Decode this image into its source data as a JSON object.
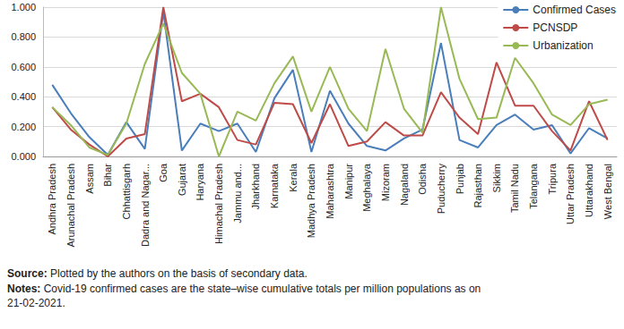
{
  "chart_data": {
    "type": "line",
    "categories": [
      "Andhra Pradesh",
      "Arunachal Pradesh",
      "Assam",
      "Bihar",
      "Chhattisgarh",
      "Dadra and Nagar...",
      "Goa",
      "Gujarat",
      "Haryana",
      "Himachal Pradesh",
      "Jammu and...",
      "Jharkhand",
      "Karnataka",
      "Kerala",
      "Madhya Pradesh",
      "Maharashtra",
      "Manipur",
      "Meghalaya",
      "Mizoram",
      "Nagaland",
      "Odisha",
      "Puducherry",
      "Punjab",
      "Rajasthan",
      "Sikkim",
      "Tamil Nadu",
      "Telangana",
      "Tripura",
      "Uttar Pradesh",
      "Uttarakhand",
      "West Bengal"
    ],
    "series": [
      {
        "name": "Confirmed Cases",
        "color": "#4a7ebb",
        "values": [
          0.48,
          0.29,
          0.13,
          0.01,
          0.23,
          0.05,
          0.97,
          0.04,
          0.22,
          0.17,
          0.22,
          0.03,
          0.39,
          0.58,
          0.03,
          0.44,
          0.22,
          0.07,
          0.04,
          0.12,
          0.18,
          0.76,
          0.11,
          0.06,
          0.21,
          0.28,
          0.18,
          0.21,
          0.02,
          0.19,
          0.12
        ]
      },
      {
        "name": "PCNSDP",
        "color": "#be4b48",
        "values": [
          0.33,
          0.18,
          0.08,
          0.0,
          0.12,
          0.15,
          1.0,
          0.37,
          0.42,
          0.33,
          0.11,
          0.08,
          0.36,
          0.35,
          0.09,
          0.35,
          0.07,
          0.1,
          0.23,
          0.14,
          0.14,
          0.43,
          0.26,
          0.15,
          0.63,
          0.34,
          0.34,
          0.17,
          0.04,
          0.37,
          0.11
        ]
      },
      {
        "name": "Urbanization",
        "color": "#98b954",
        "values": [
          0.33,
          0.21,
          0.06,
          0.01,
          0.22,
          0.62,
          0.89,
          0.56,
          0.42,
          0.0,
          0.3,
          0.24,
          0.49,
          0.67,
          0.3,
          0.6,
          0.32,
          0.17,
          0.72,
          0.32,
          0.16,
          1.0,
          0.52,
          0.25,
          0.26,
          0.66,
          0.49,
          0.28,
          0.21,
          0.35,
          0.38
        ]
      }
    ],
    "ylim": [
      0,
      1
    ],
    "yticks": [
      {
        "value": 0,
        "label": "0.000"
      },
      {
        "value": 0.2,
        "label": "0.200"
      },
      {
        "value": 0.4,
        "label": "0.400"
      },
      {
        "value": 0.6,
        "label": "0.600"
      },
      {
        "value": 0.8,
        "label": "0.800"
      },
      {
        "value": 1,
        "label": "1.000"
      }
    ],
    "grid": true,
    "legend": "top right",
    "source": {
      "label": "Source:",
      "text": "Plotted by the authors on the basis of secondary data."
    },
    "notes": {
      "label": "Notes:",
      "text": "Covid-19 confirmed cases are the state–wise cumulative totals per million populations as on 21-02-2021."
    }
  }
}
